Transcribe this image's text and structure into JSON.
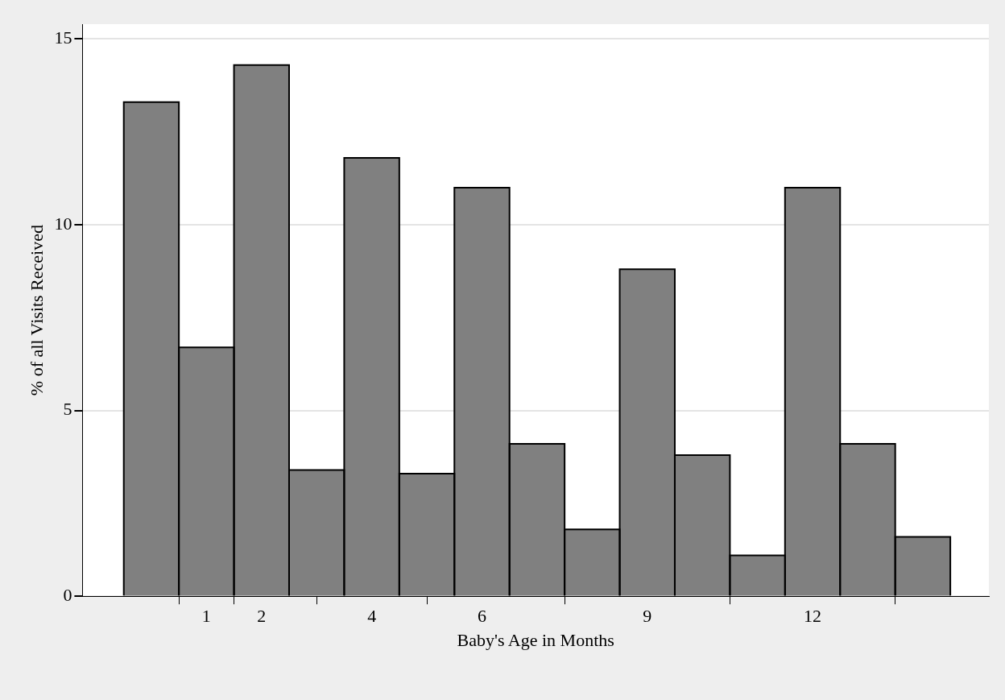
{
  "chart_data": {
    "type": "histogram",
    "xlabel": "Baby's Age in Months",
    "ylabel": "% of all Visits Received",
    "bins": [
      -0.5,
      0.5,
      1.5,
      2.5,
      3.5,
      4.5,
      5.5,
      6.5,
      7.5,
      8.5,
      9.5,
      10.5,
      11.5,
      12.5,
      13.5,
      14.5
    ],
    "values": [
      13.3,
      6.7,
      14.3,
      3.4,
      11.8,
      3.3,
      11.0,
      4.1,
      1.8,
      8.8,
      3.8,
      1.1,
      11.0,
      4.1,
      1.6
    ],
    "color": "#808080",
    "xlim": [
      -1.25,
      15.2
    ],
    "xticks": [
      1,
      2,
      4,
      6,
      9,
      12
    ],
    "ylim": [
      0,
      15.4
    ],
    "yticks": [
      0,
      5,
      10,
      15
    ],
    "grid": "y"
  }
}
